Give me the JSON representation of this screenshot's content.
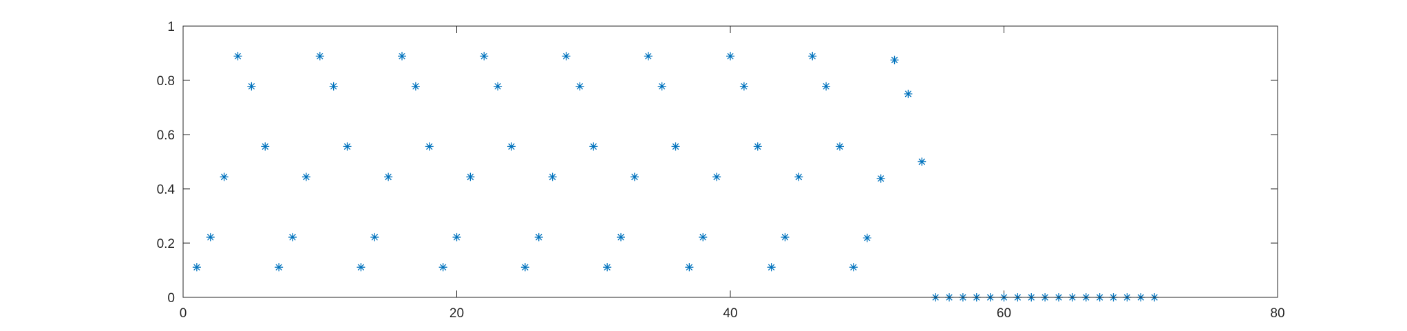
{
  "chart_data": {
    "type": "scatter",
    "marker": "asterisk",
    "color": "#0072BD",
    "xlim": [
      0,
      80
    ],
    "ylim": [
      0,
      1
    ],
    "xticks": [
      0,
      20,
      40,
      60,
      80
    ],
    "yticks": [
      0,
      0.2,
      0.4,
      0.6,
      0.8,
      1
    ],
    "xtick_labels": [
      "0",
      "20",
      "40",
      "60",
      "80"
    ],
    "ytick_labels": [
      "0",
      "0.2",
      "0.4",
      "0.6",
      "0.8",
      "1"
    ],
    "grid": false,
    "box": true,
    "series": [
      {
        "x": [
          1,
          2,
          3,
          4,
          5,
          6,
          7,
          8,
          9,
          10,
          11,
          12,
          13,
          14,
          15,
          16,
          17,
          18,
          19,
          20,
          21,
          22,
          23,
          24,
          25,
          26,
          27,
          28,
          29,
          30,
          31,
          32,
          33,
          34,
          35,
          36,
          37,
          38,
          39,
          40,
          41,
          42,
          43,
          44,
          45,
          46,
          47,
          48,
          49,
          50,
          51,
          52,
          53,
          54,
          55,
          56,
          57,
          58,
          59,
          60,
          61,
          62,
          63,
          64,
          65,
          66,
          67,
          68,
          69,
          70,
          71
        ],
        "y": [
          0.111,
          0.222,
          0.444,
          0.889,
          0.778,
          0.556,
          0.111,
          0.222,
          0.444,
          0.889,
          0.778,
          0.556,
          0.111,
          0.222,
          0.444,
          0.889,
          0.778,
          0.556,
          0.111,
          0.222,
          0.444,
          0.889,
          0.778,
          0.556,
          0.111,
          0.222,
          0.444,
          0.889,
          0.778,
          0.556,
          0.111,
          0.222,
          0.444,
          0.889,
          0.778,
          0.556,
          0.111,
          0.222,
          0.444,
          0.889,
          0.778,
          0.556,
          0.111,
          0.222,
          0.444,
          0.889,
          0.778,
          0.556,
          0.111,
          0.219,
          0.438,
          0.875,
          0.75,
          0.5,
          0,
          0,
          0,
          0,
          0,
          0,
          0,
          0,
          0,
          0,
          0,
          0,
          0,
          0,
          0,
          0,
          0
        ]
      }
    ]
  }
}
